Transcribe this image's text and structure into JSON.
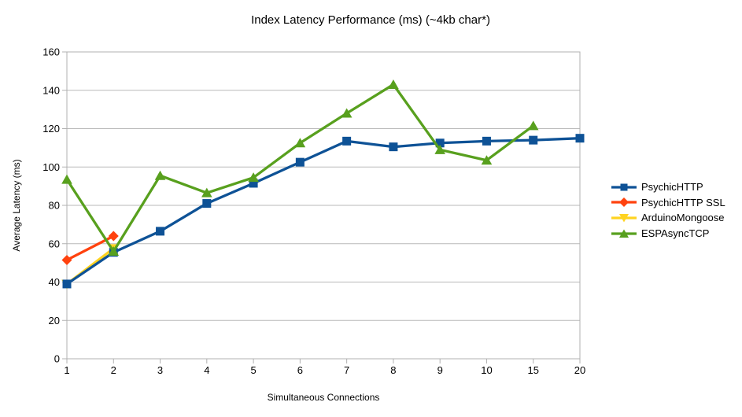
{
  "title": "Index Latency Performance (ms) (~4kb char*)",
  "chart_data": {
    "type": "line",
    "title": "Index Latency Performance (ms) (~4kb char*)",
    "xlabel": "Simultaneous Connections",
    "ylabel": "Average Latency (ms)",
    "categories": [
      "1",
      "2",
      "3",
      "4",
      "5",
      "6",
      "7",
      "8",
      "9",
      "10",
      "15",
      "20"
    ],
    "ylim": [
      0,
      160
    ],
    "yticks": [
      0,
      20,
      40,
      60,
      80,
      100,
      120,
      140,
      160
    ],
    "grid": "horizontal",
    "legend_position": "right",
    "series": [
      {
        "name": "PsychicHTTP",
        "color": "#0E5296",
        "marker": "square",
        "values": [
          39,
          55.5,
          66.5,
          81,
          91.5,
          102.5,
          113.5,
          110.5,
          112.5,
          113.5,
          114,
          115
        ]
      },
      {
        "name": "PsychicHTTP SSL",
        "color": "#FF420E",
        "marker": "diamond",
        "values": [
          51.5,
          64,
          null,
          null,
          null,
          null,
          null,
          null,
          null,
          null,
          null,
          null
        ]
      },
      {
        "name": "ArduinoMongoose",
        "color": "#FFD320",
        "marker": "triangle-down",
        "values": [
          39,
          57.5,
          null,
          null,
          null,
          null,
          null,
          null,
          null,
          null,
          null,
          null
        ]
      },
      {
        "name": "ESPAsyncTCP",
        "color": "#58A01E",
        "marker": "triangle-up",
        "values": [
          93.5,
          56,
          95.5,
          86.5,
          94.5,
          112.5,
          128,
          143,
          109,
          103.5,
          121.5,
          null
        ]
      }
    ]
  },
  "colors": {
    "grid": "#b9b9b9",
    "axis": "#b0b0b0",
    "text": "#000000",
    "background": "#ffffff"
  }
}
